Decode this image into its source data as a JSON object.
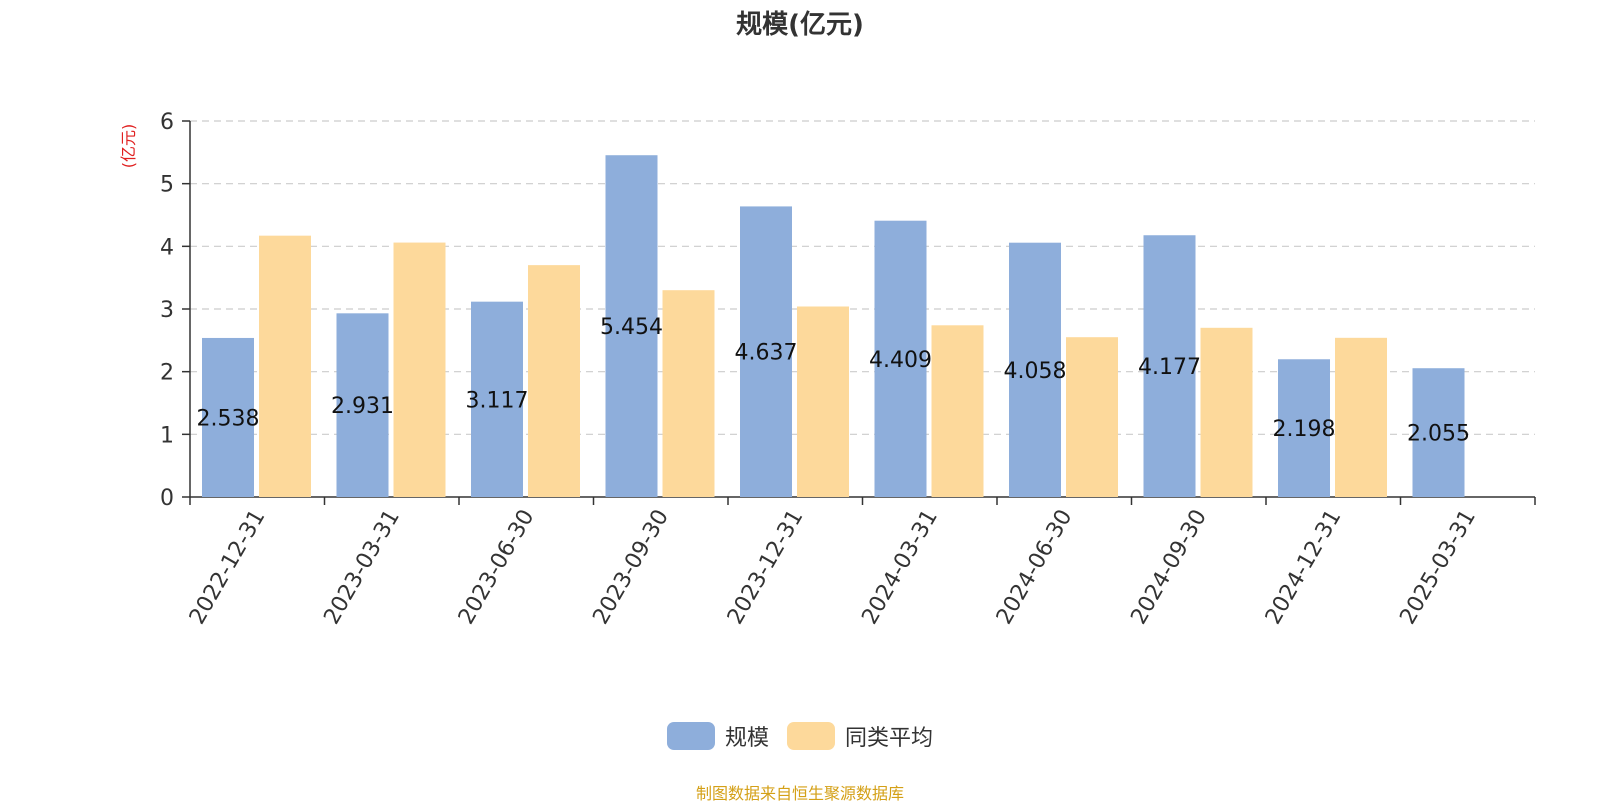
{
  "title": "规模(亿元)",
  "source_note": "制图数据来自恒生聚源数据库",
  "colors": {
    "series_scale": "#8eaedb",
    "series_avg": "#fdd99b",
    "unit_label": "#e02020",
    "source_note": "#d4a017",
    "axis": "#333333",
    "grid": "#cccccc"
  },
  "chart_data": {
    "type": "bar",
    "title": "规模(亿元)",
    "ylabel": "(亿元)",
    "xlabel": "",
    "ylim": [
      0,
      6
    ],
    "yticks": [
      0,
      1,
      2,
      3,
      4,
      5,
      6
    ],
    "grid": "horizontal-dashed",
    "legend_position": "bottom-center",
    "categories": [
      "2022-12-31",
      "2023-03-31",
      "2023-06-30",
      "2023-09-30",
      "2023-12-31",
      "2024-03-31",
      "2024-06-30",
      "2024-09-30",
      "2024-12-31",
      "2025-03-31"
    ],
    "series": [
      {
        "name": "规模",
        "values": [
          2.538,
          2.931,
          3.117,
          5.454,
          4.637,
          4.409,
          4.058,
          4.177,
          2.198,
          2.055
        ],
        "data_labels": [
          "2.538",
          "2.931",
          "3.117",
          "5.454",
          "4.637",
          "4.409",
          "4.058",
          "4.177",
          "2.198",
          "2.055"
        ]
      },
      {
        "name": "同类平均",
        "values": [
          4.17,
          4.06,
          3.7,
          3.3,
          3.04,
          2.74,
          2.55,
          2.7,
          2.54,
          null
        ]
      }
    ]
  }
}
